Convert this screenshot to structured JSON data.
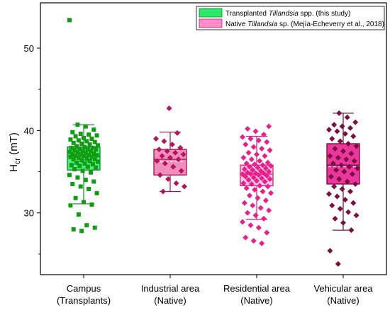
{
  "chart_data": {
    "type": "box",
    "ylabel_main": "H",
    "ylabel_sub": "cr",
    "ylabel_unit": " (mT)",
    "ylim": [
      22.5,
      55.5
    ],
    "yticks": [
      30,
      40,
      50
    ],
    "grid": false,
    "legend_position": "top-right",
    "legend": [
      {
        "prefix": "Transplanted ",
        "italic": "Tillandsia",
        "suffix": " spp. (this study)",
        "color": "#2ee86a",
        "edge": "#0b8a23"
      },
      {
        "prefix": "Native ",
        "italic": "Tillandsia",
        "suffix": " sp. (Mejía-Echeverry et al., 2018)",
        "color": "#ff8cc6",
        "edge": "#c3187a"
      }
    ],
    "categories": [
      {
        "line1": "Campus",
        "line2": "(Transplants)"
      },
      {
        "line1": "Industrial area",
        "line2": "(Native)"
      },
      {
        "line1": "Residential area",
        "line2": "(Native)"
      },
      {
        "line1": "Vehicular area",
        "line2": "(Native)"
      }
    ],
    "series": [
      {
        "marker": "square",
        "point_color": "#119d12",
        "box_fill": "#2ee86a",
        "box_edge": "#0b8a23",
        "box": {
          "whisker_low": 31.1,
          "q1": 35.2,
          "median": 36.9,
          "mean": 36.6,
          "q3": 38.0,
          "whisker_high": 40.7
        },
        "points": [
          53.4,
          40.7,
          40.5,
          40.1,
          39.8,
          39.6,
          39.5,
          39.4,
          39.3,
          39.1,
          39.0,
          38.9,
          38.8,
          38.7,
          38.6,
          38.5,
          38.4,
          38.3,
          38.2,
          38.1,
          38.0,
          37.9,
          37.9,
          37.8,
          37.7,
          37.7,
          37.6,
          37.5,
          37.5,
          37.4,
          37.3,
          37.3,
          37.2,
          37.1,
          37.1,
          37.0,
          37.0,
          36.9,
          36.9,
          36.8,
          36.8,
          36.7,
          36.6,
          36.5,
          36.5,
          36.4,
          36.3,
          36.2,
          36.1,
          36.0,
          35.9,
          35.8,
          35.7,
          35.6,
          35.5,
          35.3,
          35.1,
          34.9,
          34.6,
          34.3,
          34.0,
          33.8,
          33.5,
          33.2,
          32.9,
          32.4,
          31.8,
          31.3,
          31.0,
          30.9,
          29.8,
          28.5,
          28.2,
          28.0,
          27.8
        ]
      },
      {
        "marker": "diamond",
        "point_color": "#b4155f",
        "box_fill": "#f07ab3",
        "box_edge": "#a3124f",
        "box": {
          "whisker_low": 32.6,
          "q1": 34.6,
          "median": 36.5,
          "mean": 36.2,
          "q3": 37.7,
          "whisker_high": 39.8
        },
        "points": [
          42.7,
          39.7,
          39.0,
          38.7,
          38.3,
          37.9,
          37.7,
          37.5,
          37.3,
          37.1,
          36.9,
          36.7,
          36.5,
          36.3,
          36.0,
          35.6,
          35.1,
          34.6,
          34.1,
          33.6,
          33.2,
          32.6
        ]
      },
      {
        "marker": "diamond",
        "point_color": "#ec1c8c",
        "box_fill": "#fbc3dd",
        "box_edge": "#d41b84",
        "box": {
          "whisker_low": 29.2,
          "q1": 33.3,
          "median": 34.7,
          "mean": 34.5,
          "q3": 35.8,
          "whisker_high": 39.3
        },
        "points": [
          40.5,
          40.2,
          39.9,
          39.5,
          39.2,
          39.0,
          38.8,
          38.6,
          38.3,
          38.0,
          37.8,
          37.6,
          37.3,
          37.1,
          36.9,
          36.7,
          36.5,
          36.3,
          36.1,
          36.0,
          35.9,
          35.8,
          35.7,
          35.6,
          35.5,
          35.4,
          35.3,
          35.2,
          35.1,
          35.0,
          34.9,
          34.8,
          34.8,
          34.7,
          34.7,
          34.6,
          34.5,
          34.4,
          34.3,
          34.2,
          34.1,
          34.0,
          33.9,
          33.8,
          33.6,
          33.5,
          33.3,
          33.2,
          33.0,
          32.8,
          32.6,
          32.4,
          32.1,
          31.8,
          31.5,
          31.2,
          30.9,
          30.6,
          30.3,
          30.0,
          29.7,
          29.3,
          28.9,
          28.5,
          28.2,
          27.6,
          27.0,
          26.6,
          26.3
        ]
      },
      {
        "marker": "diamond",
        "point_color": "#7a0e3d",
        "box_fill": "#e8148c",
        "box_edge": "#6e0b35",
        "box": {
          "whisker_low": 27.9,
          "q1": 33.5,
          "median": 35.8,
          "mean": 35.6,
          "q3": 38.4,
          "whisker_high": 42.1
        },
        "points": [
          42.1,
          41.6,
          41.0,
          40.7,
          40.5,
          40.3,
          40.1,
          39.9,
          39.6,
          39.3,
          39.0,
          38.7,
          38.4,
          38.1,
          37.8,
          37.5,
          37.2,
          36.9,
          36.7,
          36.5,
          36.3,
          36.0,
          35.8,
          35.6,
          35.4,
          35.2,
          35.0,
          34.7,
          34.4,
          34.1,
          33.8,
          33.5,
          33.2,
          32.9,
          32.6,
          32.3,
          32.0,
          31.6,
          31.2,
          30.9,
          30.5,
          30.1,
          29.7,
          29.3,
          28.8,
          27.9,
          25.4,
          23.8
        ]
      }
    ]
  }
}
